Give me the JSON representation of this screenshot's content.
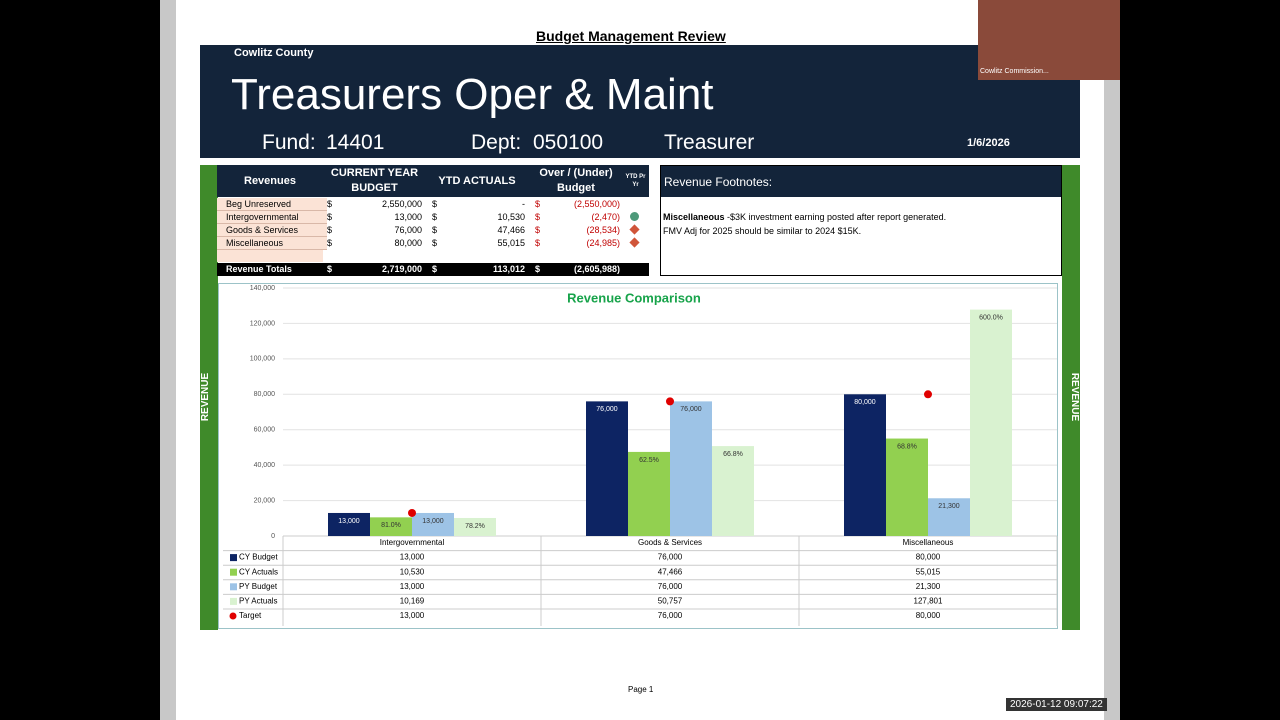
{
  "header": {
    "doc_title": "Budget Management Review",
    "county": "Cowlitz County",
    "title": "Treasurers Oper & Maint",
    "fund_label": "Fund:",
    "fund": "14401",
    "dept_label": "Dept:",
    "dept": "050100",
    "dept_name": "Treasurer",
    "date": "1/6/2026"
  },
  "side_label": "REVENUE",
  "revenue_table": {
    "columns": [
      "Revenues",
      "CURRENT YEAR BUDGET",
      "YTD ACTUALS",
      "Over / (Under) Budget",
      "YTD Pr Yr"
    ],
    "rows": [
      {
        "label": "Beg Unreserved",
        "cells": [
          "$",
          "2,550,000",
          "$",
          "-",
          "$",
          "(2,550,000)"
        ]
      },
      {
        "label": "Intergovernmental",
        "cells": [
          "$",
          "13,000",
          "$",
          "10,530",
          "$",
          "(2,470)"
        ],
        "indicator": "circle"
      },
      {
        "label": "Goods & Services",
        "cells": [
          "$",
          "76,000",
          "$",
          "47,466",
          "$",
          "(28,534)"
        ],
        "indicator": "diamond"
      },
      {
        "label": "Miscellaneous",
        "cells": [
          "$",
          "80,000",
          "$",
          "55,015",
          "$",
          "(24,985)"
        ],
        "indicator": "diamond"
      }
    ],
    "total": {
      "label": "Revenue Totals",
      "cells": [
        "$",
        "2,719,000",
        "$",
        "113,012",
        "$",
        "(2,605,988)"
      ]
    }
  },
  "footnotes": {
    "title": "Revenue Footnotes:",
    "bold": "Miscellaneous",
    "text": "-$3K investment earning posted after report generated.",
    "line2": "FMV Adj for 2025 should be similar to 2024 $15K."
  },
  "chart_data": {
    "type": "bar",
    "title": "Revenue Comparison",
    "categories": [
      "Intergovernmental",
      "Goods & Services",
      "Miscellaneous"
    ],
    "series": [
      {
        "name": "CY Budget",
        "color": "#0d2463",
        "values": [
          13000,
          76000,
          80000
        ],
        "value_labels": [
          "13,000",
          "76,000",
          "80,000"
        ]
      },
      {
        "name": "CY Actuals",
        "color": "#92d050",
        "values": [
          10530,
          47466,
          55015
        ],
        "value_labels": [
          "10,530",
          "47,466",
          "55,015"
        ],
        "bar_notes": [
          "81.0%",
          "62.5%",
          "68.8%"
        ]
      },
      {
        "name": "PY Budget",
        "color": "#9dc3e6",
        "values": [
          13000,
          76000,
          21300
        ],
        "value_labels": [
          "13,000",
          "76,000",
          "21,300"
        ]
      },
      {
        "name": "PY Actuals",
        "color": "#d9f2d0",
        "values": [
          10169,
          50757,
          127801
        ],
        "value_labels": [
          "10,169",
          "50,757",
          "127,801"
        ],
        "bar_notes": [
          "78.2%",
          "66.8%",
          "600.0%"
        ]
      },
      {
        "name": "Target",
        "color": "#e00000",
        "marker": "dot",
        "values": [
          13000,
          76000,
          80000
        ],
        "value_labels": [
          "13,000",
          "76,000",
          "80,000"
        ]
      }
    ],
    "ylim": [
      0,
      140000
    ],
    "yticks": [
      0,
      {
        "value": 20000,
        "label": "20,000"
      },
      {
        "value": 40000,
        "label": "40,000"
      },
      {
        "value": 60000,
        "label": "60,000"
      },
      {
        "value": 80000,
        "label": "80,000"
      },
      {
        "value": 100000,
        "label": "100,000"
      },
      {
        "value": 120000,
        "label": "120,000"
      },
      {
        "value": 140000,
        "label": "140,000"
      }
    ],
    "grid": true
  },
  "footer": {
    "page": "Page 1",
    "timestamp": "2026-01-12 09:07:22",
    "video_label": "Cowlitz Commission..."
  }
}
